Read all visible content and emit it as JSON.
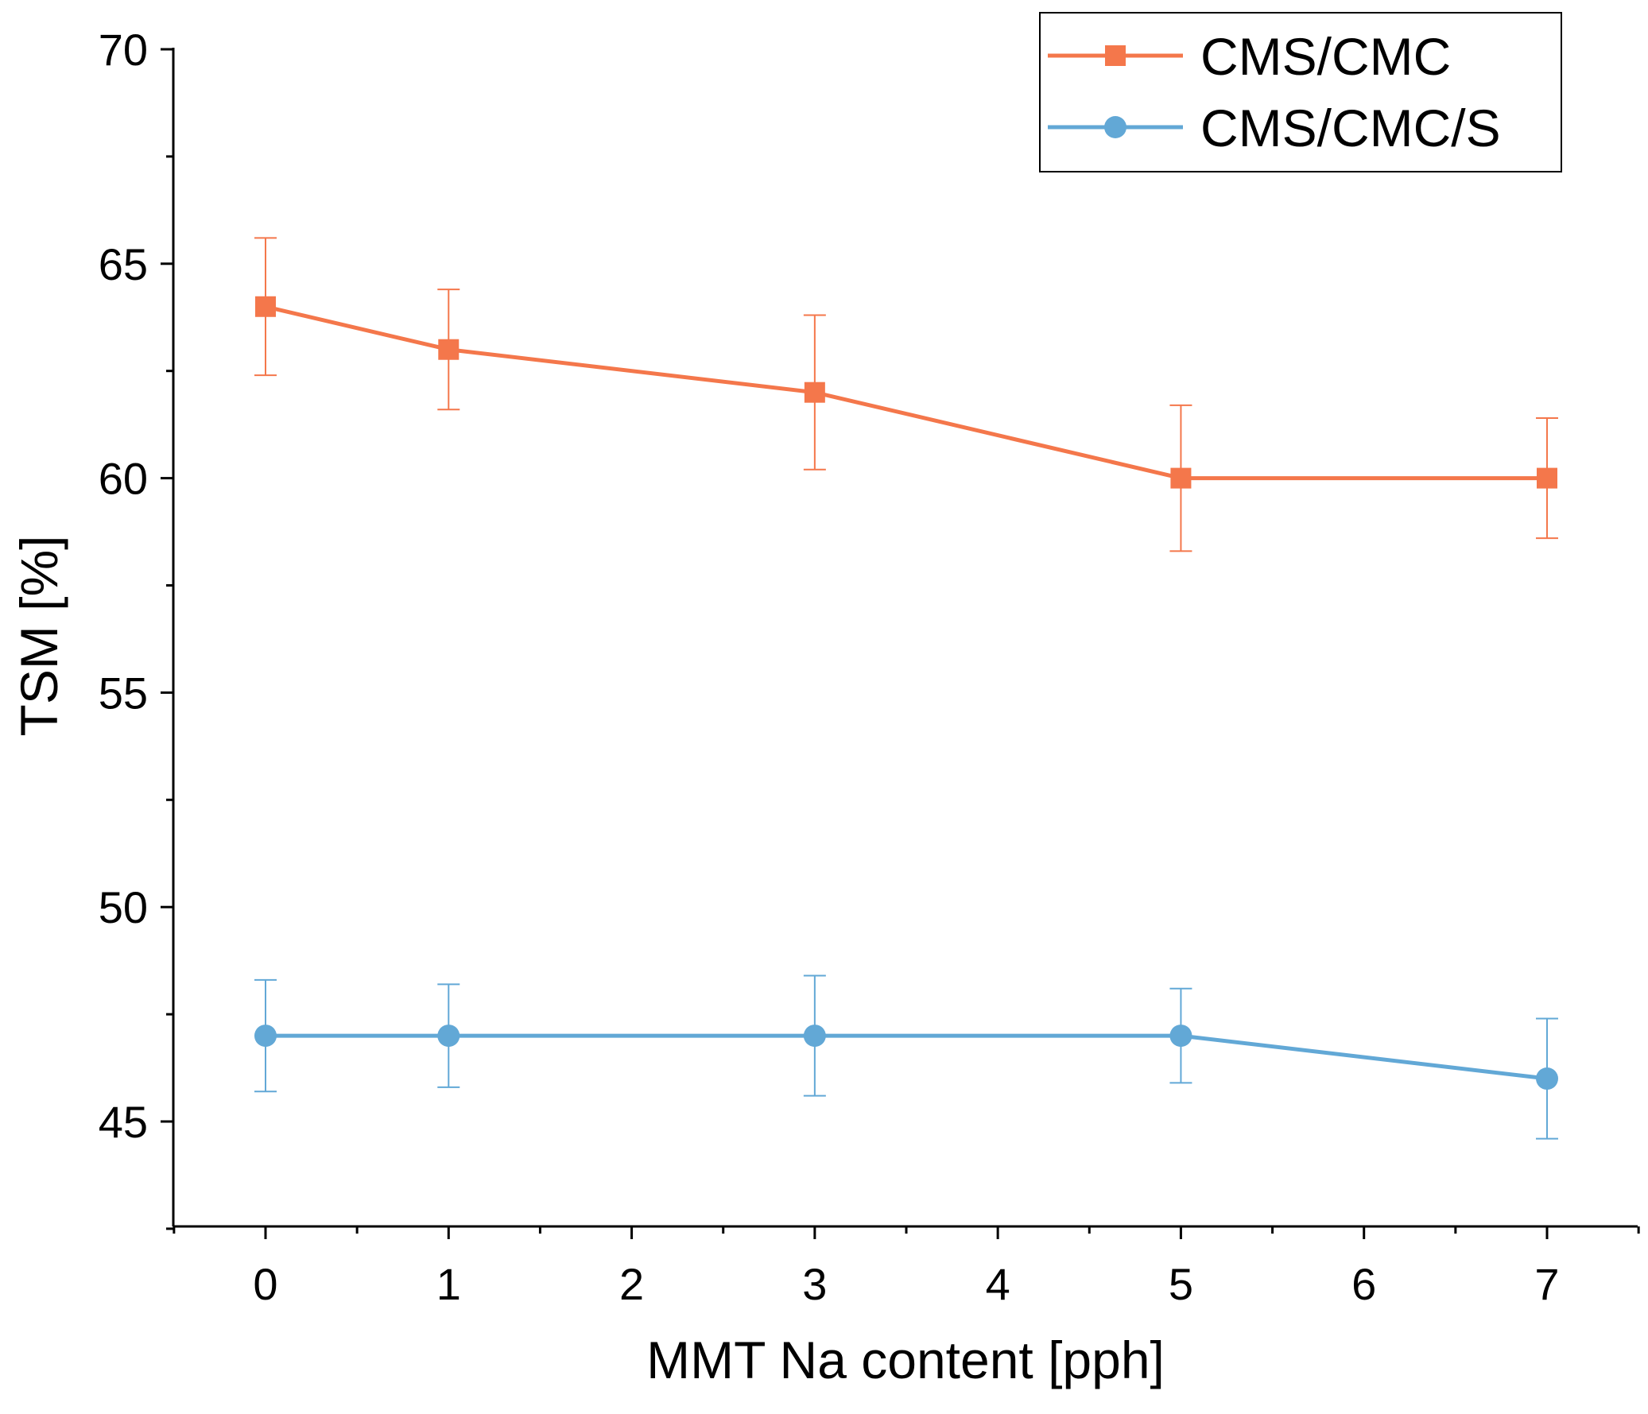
{
  "chart_data": {
    "type": "line",
    "title": "",
    "xlabel": "MMT Na content [pph]",
    "ylabel": "TSM [%]",
    "xlim": [
      -0.5,
      7.5
    ],
    "ylim": [
      42.5,
      70
    ],
    "xticks": [
      0,
      1,
      2,
      3,
      4,
      5,
      6,
      7
    ],
    "yticks": [
      45,
      50,
      55,
      60,
      65,
      70
    ],
    "legend_position": "top-right",
    "series": [
      {
        "name": "CMS/CMC",
        "color": "#F4774B",
        "marker": "square",
        "x": [
          0,
          1,
          3,
          5,
          7
        ],
        "y": [
          64,
          63,
          62,
          60,
          60
        ],
        "error": [
          1.6,
          1.4,
          1.8,
          1.7,
          1.4
        ]
      },
      {
        "name": "CMS/CMC/S",
        "color": "#62A8D6",
        "marker": "circle",
        "x": [
          0,
          1,
          3,
          5,
          7
        ],
        "y": [
          47,
          47,
          47,
          47,
          46
        ],
        "error": [
          1.3,
          1.2,
          1.4,
          1.1,
          1.4
        ]
      }
    ]
  }
}
